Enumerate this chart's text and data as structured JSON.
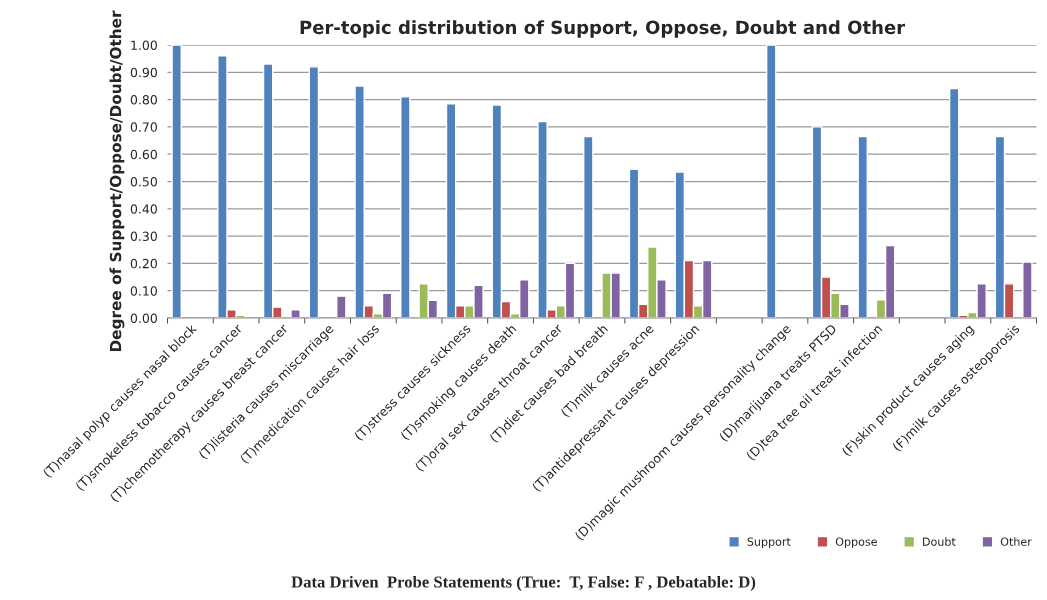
{
  "chart_data": {
    "type": "bar",
    "title": "Per-topic distribution of Support, Oppose, Doubt and Other",
    "xlabel": "Data Driven  Probe Statements (True:  T, False: F , Debatable: D)",
    "ylabel": "Degree of Support/Oppose/Doubt/Other",
    "categories": [
      "(T)nasal polyp causes nasal block",
      "(T)smokeless tobacco causes cancer",
      "(T)chemotherapy causes breast cancer",
      "(T)listeria causes miscarriage",
      "(T)medication causes hair loss",
      null,
      "(T)stress causes sickness",
      "(T)smoking causes death",
      "(T)oral sex causes throat cancer",
      "(T)diet causes bad breath",
      "(T)milk causes acne",
      "(T)antidepressant causes depression",
      null,
      "(D)magic mushroom causes personality change",
      "(D)marijuana treats PTSD",
      "(D)tea tree oil treats infection",
      null,
      "(F)skin product causes aging",
      "(F)milk causes osteoporosis"
    ],
    "series": [
      {
        "name": "Support",
        "color": "#4f81bd",
        "values": [
          1.0,
          0.96,
          0.93,
          0.92,
          0.85,
          0.81,
          0.785,
          0.78,
          0.72,
          0.665,
          0.545,
          0.535,
          null,
          1.0,
          0.7,
          0.665,
          null,
          0.84,
          0.665
        ]
      },
      {
        "name": "Oppose",
        "color": "#c0504d",
        "values": [
          null,
          0.03,
          0.04,
          null,
          0.045,
          null,
          0.045,
          0.06,
          0.03,
          null,
          0.05,
          0.21,
          null,
          null,
          0.15,
          null,
          null,
          0.01,
          0.125
        ]
      },
      {
        "name": "Doubt",
        "color": "#9bbb59",
        "values": [
          null,
          0.01,
          null,
          null,
          0.015,
          0.125,
          0.045,
          0.015,
          0.045,
          0.165,
          0.26,
          0.045,
          null,
          null,
          0.09,
          0.067,
          null,
          0.02,
          null
        ]
      },
      {
        "name": "Other",
        "color": "#8064a2",
        "values": [
          null,
          null,
          0.03,
          0.08,
          0.09,
          0.065,
          0.12,
          0.14,
          0.2,
          0.165,
          0.14,
          0.21,
          null,
          null,
          0.05,
          0.265,
          null,
          0.125,
          0.205
        ]
      }
    ],
    "ylim": [
      0,
      1.0
    ],
    "yticks": [
      {
        "value": 0,
        "label": "0.00"
      },
      {
        "value": 0.1,
        "label": "0.10"
      },
      {
        "value": 0.2,
        "label": "0.20"
      },
      {
        "value": 0.3,
        "label": "0.30"
      },
      {
        "value": 0.4,
        "label": "0.40"
      },
      {
        "value": 0.5,
        "label": "0.50"
      },
      {
        "value": 0.6,
        "label": "0.60"
      },
      {
        "value": 0.7,
        "label": "0.70"
      },
      {
        "value": 0.8,
        "label": "0.80"
      },
      {
        "value": 0.9,
        "label": "0.90"
      },
      {
        "value": 1.0,
        "label": "1.00"
      }
    ],
    "grid": "y",
    "legend": "bottom right"
  }
}
